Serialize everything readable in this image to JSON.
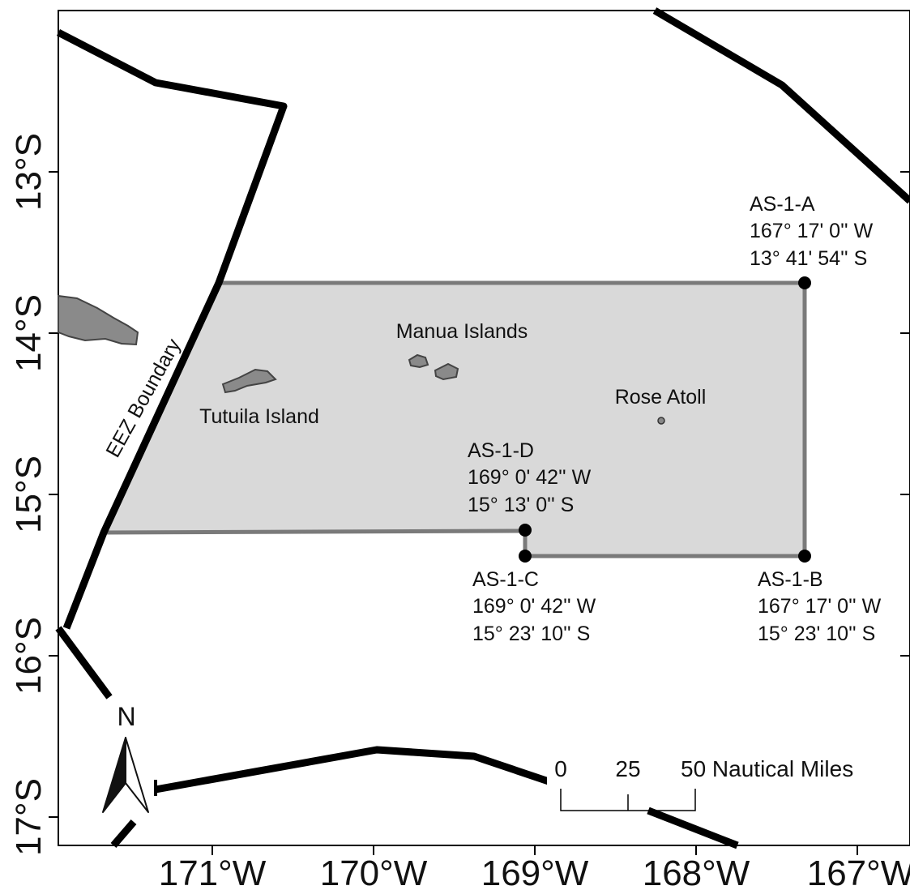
{
  "map": {
    "axis": {
      "lat_ticks": [
        "13°S",
        "14°S",
        "15°S",
        "16°S",
        "17°S"
      ],
      "lon_ticks": [
        "171°W",
        "170°W",
        "169°W",
        "168°W",
        "167°W"
      ]
    },
    "places": {
      "manua": "Manua Islands",
      "rose": "Rose Atoll",
      "tutuila": "Tutuila Island",
      "eez": "EEZ Boundary"
    },
    "points": {
      "a": {
        "id": "AS-1-A",
        "lon": "167° 17' 0'' W",
        "lat": "13° 41' 54'' S"
      },
      "b": {
        "id": "AS-1-B",
        "lon": "167° 17' 0'' W",
        "lat": "15° 23' 10'' S"
      },
      "c": {
        "id": "AS-1-C",
        "lon": "169° 0' 42'' W",
        "lat": "15° 23' 10'' S"
      },
      "d": {
        "id": "AS-1-D",
        "lon": "169° 0' 42'' W",
        "lat": "15° 13' 0'' S"
      }
    },
    "north_label": "N",
    "scale": {
      "t0": "0",
      "t1": "25",
      "t2": "50 Nautical Miles"
    },
    "colors": {
      "area_fill": "#d9d9d9",
      "area_stroke": "#7a7a7a",
      "boundary": "#000000",
      "island": "#8a8a8a"
    }
  }
}
